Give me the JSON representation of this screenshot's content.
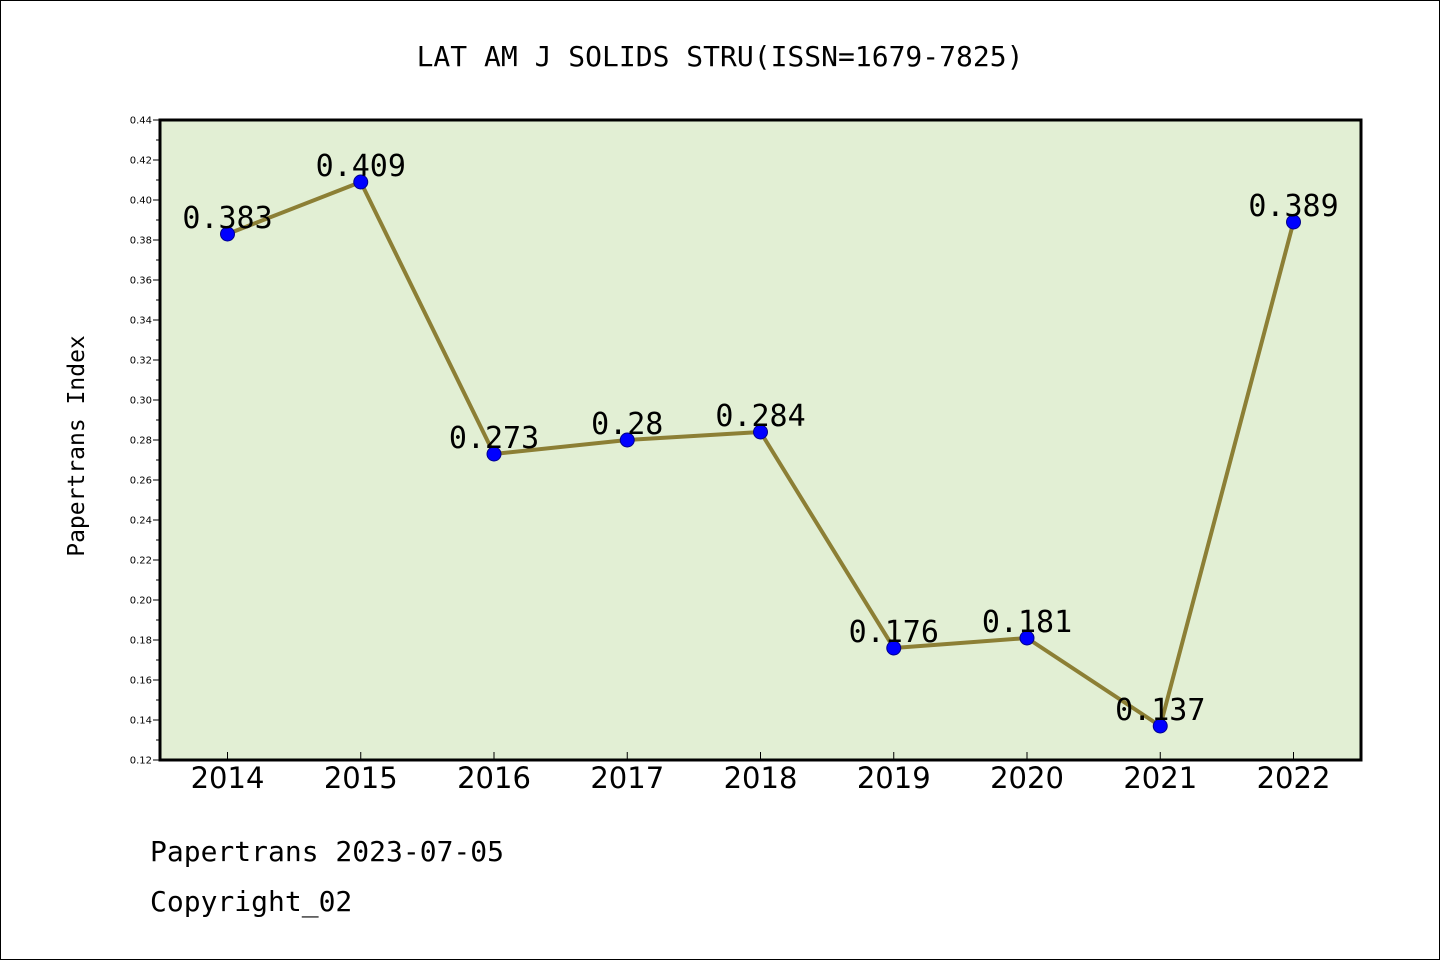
{
  "chart_data": {
    "type": "line",
    "title": "LAT AM J SOLIDS STRU(ISSN=1679-7825)",
    "xlabel": "",
    "ylabel": "Papertrans Index",
    "categories": [
      "2014",
      "2015",
      "2016",
      "2017",
      "2018",
      "2019",
      "2020",
      "2021",
      "2022"
    ],
    "series": [
      {
        "values": [
          0.383,
          0.409,
          0.273,
          0.28,
          0.284,
          0.176,
          0.181,
          0.137,
          0.389
        ]
      }
    ],
    "data_labels": [
      "0.383",
      "0.409",
      "0.273",
      "0.28",
      "0.284",
      "0.176",
      "0.181",
      "0.137",
      "0.389"
    ],
    "ylim": [
      0.12,
      0.44
    ],
    "yticks": [
      "0.12",
      "0.14",
      "0.16",
      "0.18",
      "0.20",
      "0.22",
      "0.24",
      "0.26",
      "0.28",
      "0.30",
      "0.32",
      "0.34",
      "0.36",
      "0.38",
      "0.40",
      "0.42",
      "0.44"
    ],
    "grid": false,
    "legend": "none",
    "colors": {
      "plot_background": "#e2efd4",
      "line": "#8c7f35",
      "marker": "#0000ff",
      "marker_edge": "#00008b",
      "axes": "#000000"
    }
  },
  "footer": {
    "date_line": "Papertrans 2023-07-05",
    "copyright_line": "Copyright_02"
  }
}
